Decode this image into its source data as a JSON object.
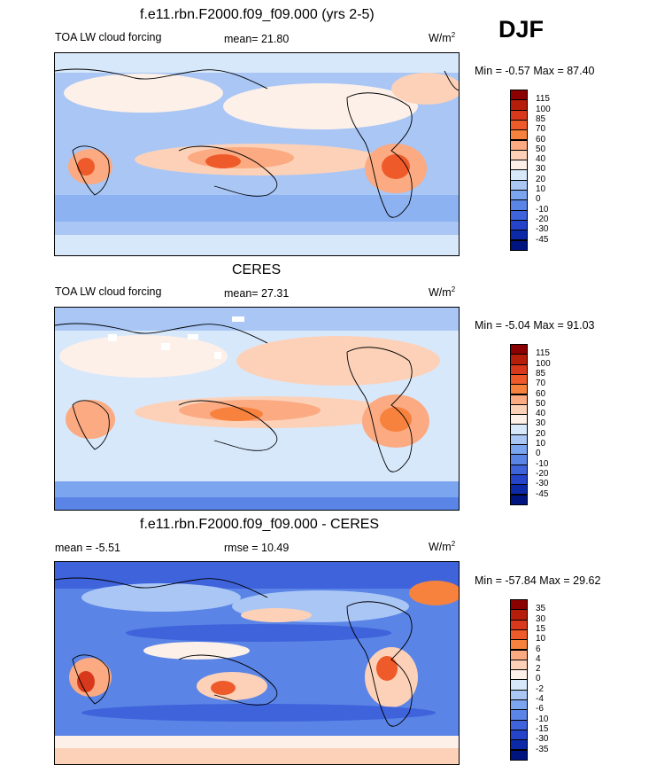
{
  "season": "DJF",
  "panels": [
    {
      "title": "f.e11.rbn.F2000.f09_f09.000 (yrs 2-5)",
      "left_label": "TOA LW cloud forcing",
      "center_label": "mean=  21.80",
      "units_base": "W/m",
      "units_exp": "2",
      "minmax": "Min =  -0.57 Max =  87.40",
      "colorbar": {
        "ticks": [
          "115",
          "100",
          "85",
          "70",
          "60",
          "50",
          "40",
          "30",
          "20",
          "10",
          "0",
          "-10",
          "-20",
          "-30",
          "-45"
        ],
        "colors": [
          "#8b0000",
          "#b41e0b",
          "#d8391c",
          "#ef5a2a",
          "#f7823e",
          "#fbaa82",
          "#fcd1b8",
          "#fdf0e8",
          "#d8e8fb",
          "#a9c6f5",
          "#7ba5ef",
          "#5a84e6",
          "#3e63db",
          "#2544c9",
          "#0c2aa8",
          "#001480"
        ]
      }
    },
    {
      "title": "CERES",
      "left_label": "TOA LW cloud forcing",
      "center_label": "mean=  27.31",
      "units_base": "W/m",
      "units_exp": "2",
      "minmax": "Min =  -5.04 Max =  91.03",
      "colorbar": {
        "ticks": [
          "115",
          "100",
          "85",
          "70",
          "60",
          "50",
          "40",
          "30",
          "20",
          "10",
          "0",
          "-10",
          "-20",
          "-30",
          "-45"
        ],
        "colors": [
          "#8b0000",
          "#b41e0b",
          "#d8391c",
          "#ef5a2a",
          "#f7823e",
          "#fbaa82",
          "#fcd1b8",
          "#fdf0e8",
          "#d8e8fb",
          "#a9c6f5",
          "#7ba5ef",
          "#5a84e6",
          "#3e63db",
          "#2544c9",
          "#0c2aa8",
          "#001480"
        ]
      }
    },
    {
      "title": "f.e11.rbn.F2000.f09_f09.000 - CERES",
      "left_label": "mean =  -5.51",
      "center_label": "rmse =  10.49",
      "units_base": "W/m",
      "units_exp": "2",
      "minmax": "Min = -57.84 Max =  29.62",
      "colorbar": {
        "ticks": [
          "35",
          "30",
          "15",
          "10",
          "6",
          "4",
          "2",
          "0",
          "-2",
          "-4",
          "-6",
          "-10",
          "-15",
          "-30",
          "-35"
        ],
        "colors": [
          "#8b0000",
          "#b41e0b",
          "#d8391c",
          "#ef5a2a",
          "#f7823e",
          "#fbaa82",
          "#fcd1b8",
          "#fdf0e8",
          "#d8e8fb",
          "#a9c6f5",
          "#7ba5ef",
          "#5a84e6",
          "#3e63db",
          "#2544c9",
          "#0c2aa8",
          "#001480"
        ]
      }
    }
  ]
}
